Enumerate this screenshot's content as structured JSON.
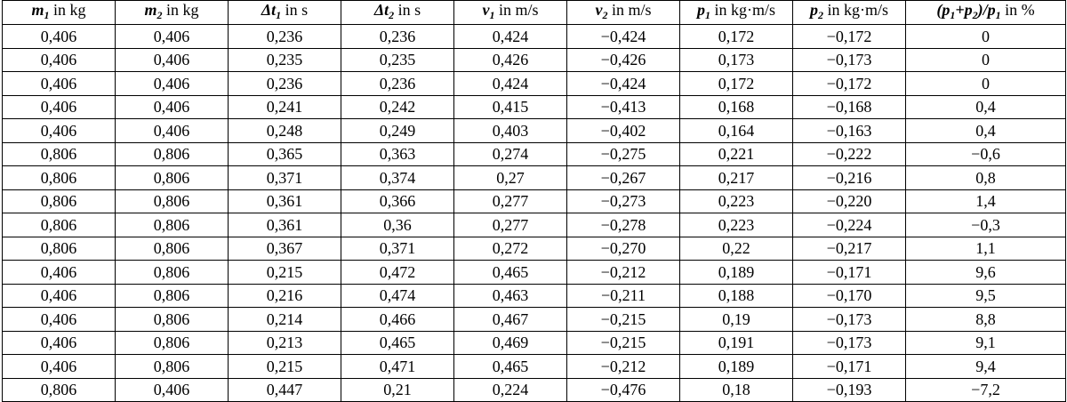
{
  "table": {
    "header": [
      [
        {
          "t": "m",
          "f": "bi"
        },
        {
          "t": "1",
          "f": "sub"
        },
        {
          "t": " in kg",
          "f": "n"
        }
      ],
      [
        {
          "t": "m",
          "f": "bi"
        },
        {
          "t": "2",
          "f": "sub"
        },
        {
          "t": " in kg",
          "f": "n"
        }
      ],
      [
        {
          "t": "Δt",
          "f": "bi"
        },
        {
          "t": "1",
          "f": "sub"
        },
        {
          "t": " in s",
          "f": "n"
        }
      ],
      [
        {
          "t": "Δt",
          "f": "bi"
        },
        {
          "t": "2",
          "f": "sub"
        },
        {
          "t": " in s",
          "f": "n"
        }
      ],
      [
        {
          "t": "v",
          "f": "bi"
        },
        {
          "t": "1",
          "f": "sub"
        },
        {
          "t": " in m/s",
          "f": "n"
        }
      ],
      [
        {
          "t": "v",
          "f": "bi"
        },
        {
          "t": "2",
          "f": "sub"
        },
        {
          "t": " in m/s",
          "f": "n"
        }
      ],
      [
        {
          "t": "p",
          "f": "bi"
        },
        {
          "t": "1",
          "f": "sub"
        },
        {
          "t": " in kg·m/s",
          "f": "n"
        }
      ],
      [
        {
          "t": "p",
          "f": "bi"
        },
        {
          "t": "2",
          "f": "sub"
        },
        {
          "t": " in kg·m/s",
          "f": "n"
        }
      ],
      [
        {
          "t": "(p",
          "f": "bi"
        },
        {
          "t": "1",
          "f": "sub"
        },
        {
          "t": "+p",
          "f": "bi"
        },
        {
          "t": "2",
          "f": "sub"
        },
        {
          "t": ")/p",
          "f": "bi"
        },
        {
          "t": "1",
          "f": "sub"
        },
        {
          "t": " in %",
          "f": "n"
        }
      ]
    ],
    "rows": [
      [
        "0,406",
        "0,406",
        "0,236",
        "0,236",
        "0,424",
        "−0,424",
        "0,172",
        "−0,172",
        "0"
      ],
      [
        "0,406",
        "0,406",
        "0,235",
        "0,235",
        "0,426",
        "−0,426",
        "0,173",
        "−0,173",
        "0"
      ],
      [
        "0,406",
        "0,406",
        "0,236",
        "0,236",
        "0,424",
        "−0,424",
        "0,172",
        "−0,172",
        "0"
      ],
      [
        "0,406",
        "0,406",
        "0,241",
        "0,242",
        "0,415",
        "−0,413",
        "0,168",
        "−0,168",
        "0,4"
      ],
      [
        "0,406",
        "0,406",
        "0,248",
        "0,249",
        "0,403",
        "−0,402",
        "0,164",
        "−0,163",
        "0,4"
      ],
      [
        "0,806",
        "0,806",
        "0,365",
        "0,363",
        "0,274",
        "−0,275",
        "0,221",
        "−0,222",
        "−0,6"
      ],
      [
        "0,806",
        "0,806",
        "0,371",
        "0,374",
        "0,27",
        "−0,267",
        "0,217",
        "−0,216",
        "0,8"
      ],
      [
        "0,806",
        "0,806",
        "0,361",
        "0,366",
        "0,277",
        "−0,273",
        "0,223",
        "−0,220",
        "1,4"
      ],
      [
        "0,806",
        "0,806",
        "0,361",
        "0,36",
        "0,277",
        "−0,278",
        "0,223",
        "−0,224",
        "−0,3"
      ],
      [
        "0,806",
        "0,806",
        "0,367",
        "0,371",
        "0,272",
        "−0,270",
        "0,22",
        "−0,217",
        "1,1"
      ],
      [
        "0,406",
        "0,806",
        "0,215",
        "0,472",
        "0,465",
        "−0,212",
        "0,189",
        "−0,171",
        "9,6"
      ],
      [
        "0,406",
        "0,806",
        "0,216",
        "0,474",
        "0,463",
        "−0,211",
        "0,188",
        "−0,170",
        "9,5"
      ],
      [
        "0,406",
        "0,806",
        "0,214",
        "0,466",
        "0,467",
        "−0,215",
        "0,19",
        "−0,173",
        "8,8"
      ],
      [
        "0,406",
        "0,806",
        "0,213",
        "0,465",
        "0,469",
        "−0,215",
        "0,191",
        "−0,173",
        "9,1"
      ],
      [
        "0,406",
        "0,806",
        "0,215",
        "0,471",
        "0,465",
        "−0,212",
        "0,189",
        "−0,171",
        "9,4"
      ],
      [
        "0,806",
        "0,406",
        "0,447",
        "0,21",
        "0,224",
        "−0,476",
        "0,18",
        "−0,193",
        "−7,2"
      ]
    ]
  }
}
